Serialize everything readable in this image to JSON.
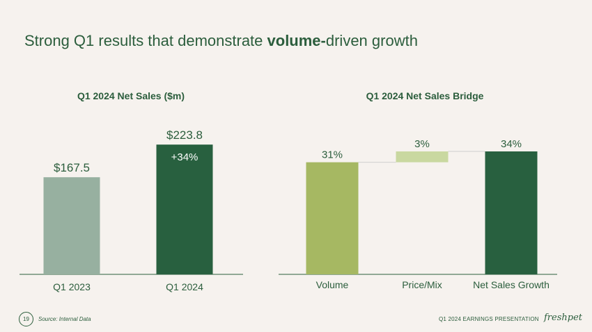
{
  "slide": {
    "title_part1": "Strong Q1 results that demonstrate ",
    "title_bold": "volume-",
    "title_part2": "driven growth"
  },
  "chart_data": [
    {
      "type": "bar",
      "title": "Q1 2024 Net Sales ($m)",
      "categories": [
        "Q1 2023",
        "Q1 2024"
      ],
      "values": [
        167.5,
        223.8
      ],
      "data_labels": [
        "$167.5",
        "$223.8"
      ],
      "annotation": "+34%",
      "colors": [
        "#97b0a0",
        "#28603f"
      ],
      "ylim": [
        0,
        230
      ]
    },
    {
      "type": "waterfall",
      "title": "Q1 2024 Net Sales Bridge",
      "categories": [
        "Volume",
        "Price/Mix",
        "Net Sales Growth"
      ],
      "values": [
        31,
        3,
        34
      ],
      "data_labels": [
        "31%",
        "3%",
        "34%"
      ],
      "colors": [
        "#a6b862",
        "#c9d8a0",
        "#28603f"
      ],
      "ylim": [
        0,
        34
      ]
    }
  ],
  "footer": {
    "page_number": "19",
    "source": "Source: Internal Data",
    "presentation": "Q1 2024 EARNINGS PRESENTATION",
    "logo_text": "freshpet"
  },
  "colors": {
    "text": "#2b5d3c",
    "background": "#f6f2ee",
    "axis": "#2b5d3c"
  }
}
